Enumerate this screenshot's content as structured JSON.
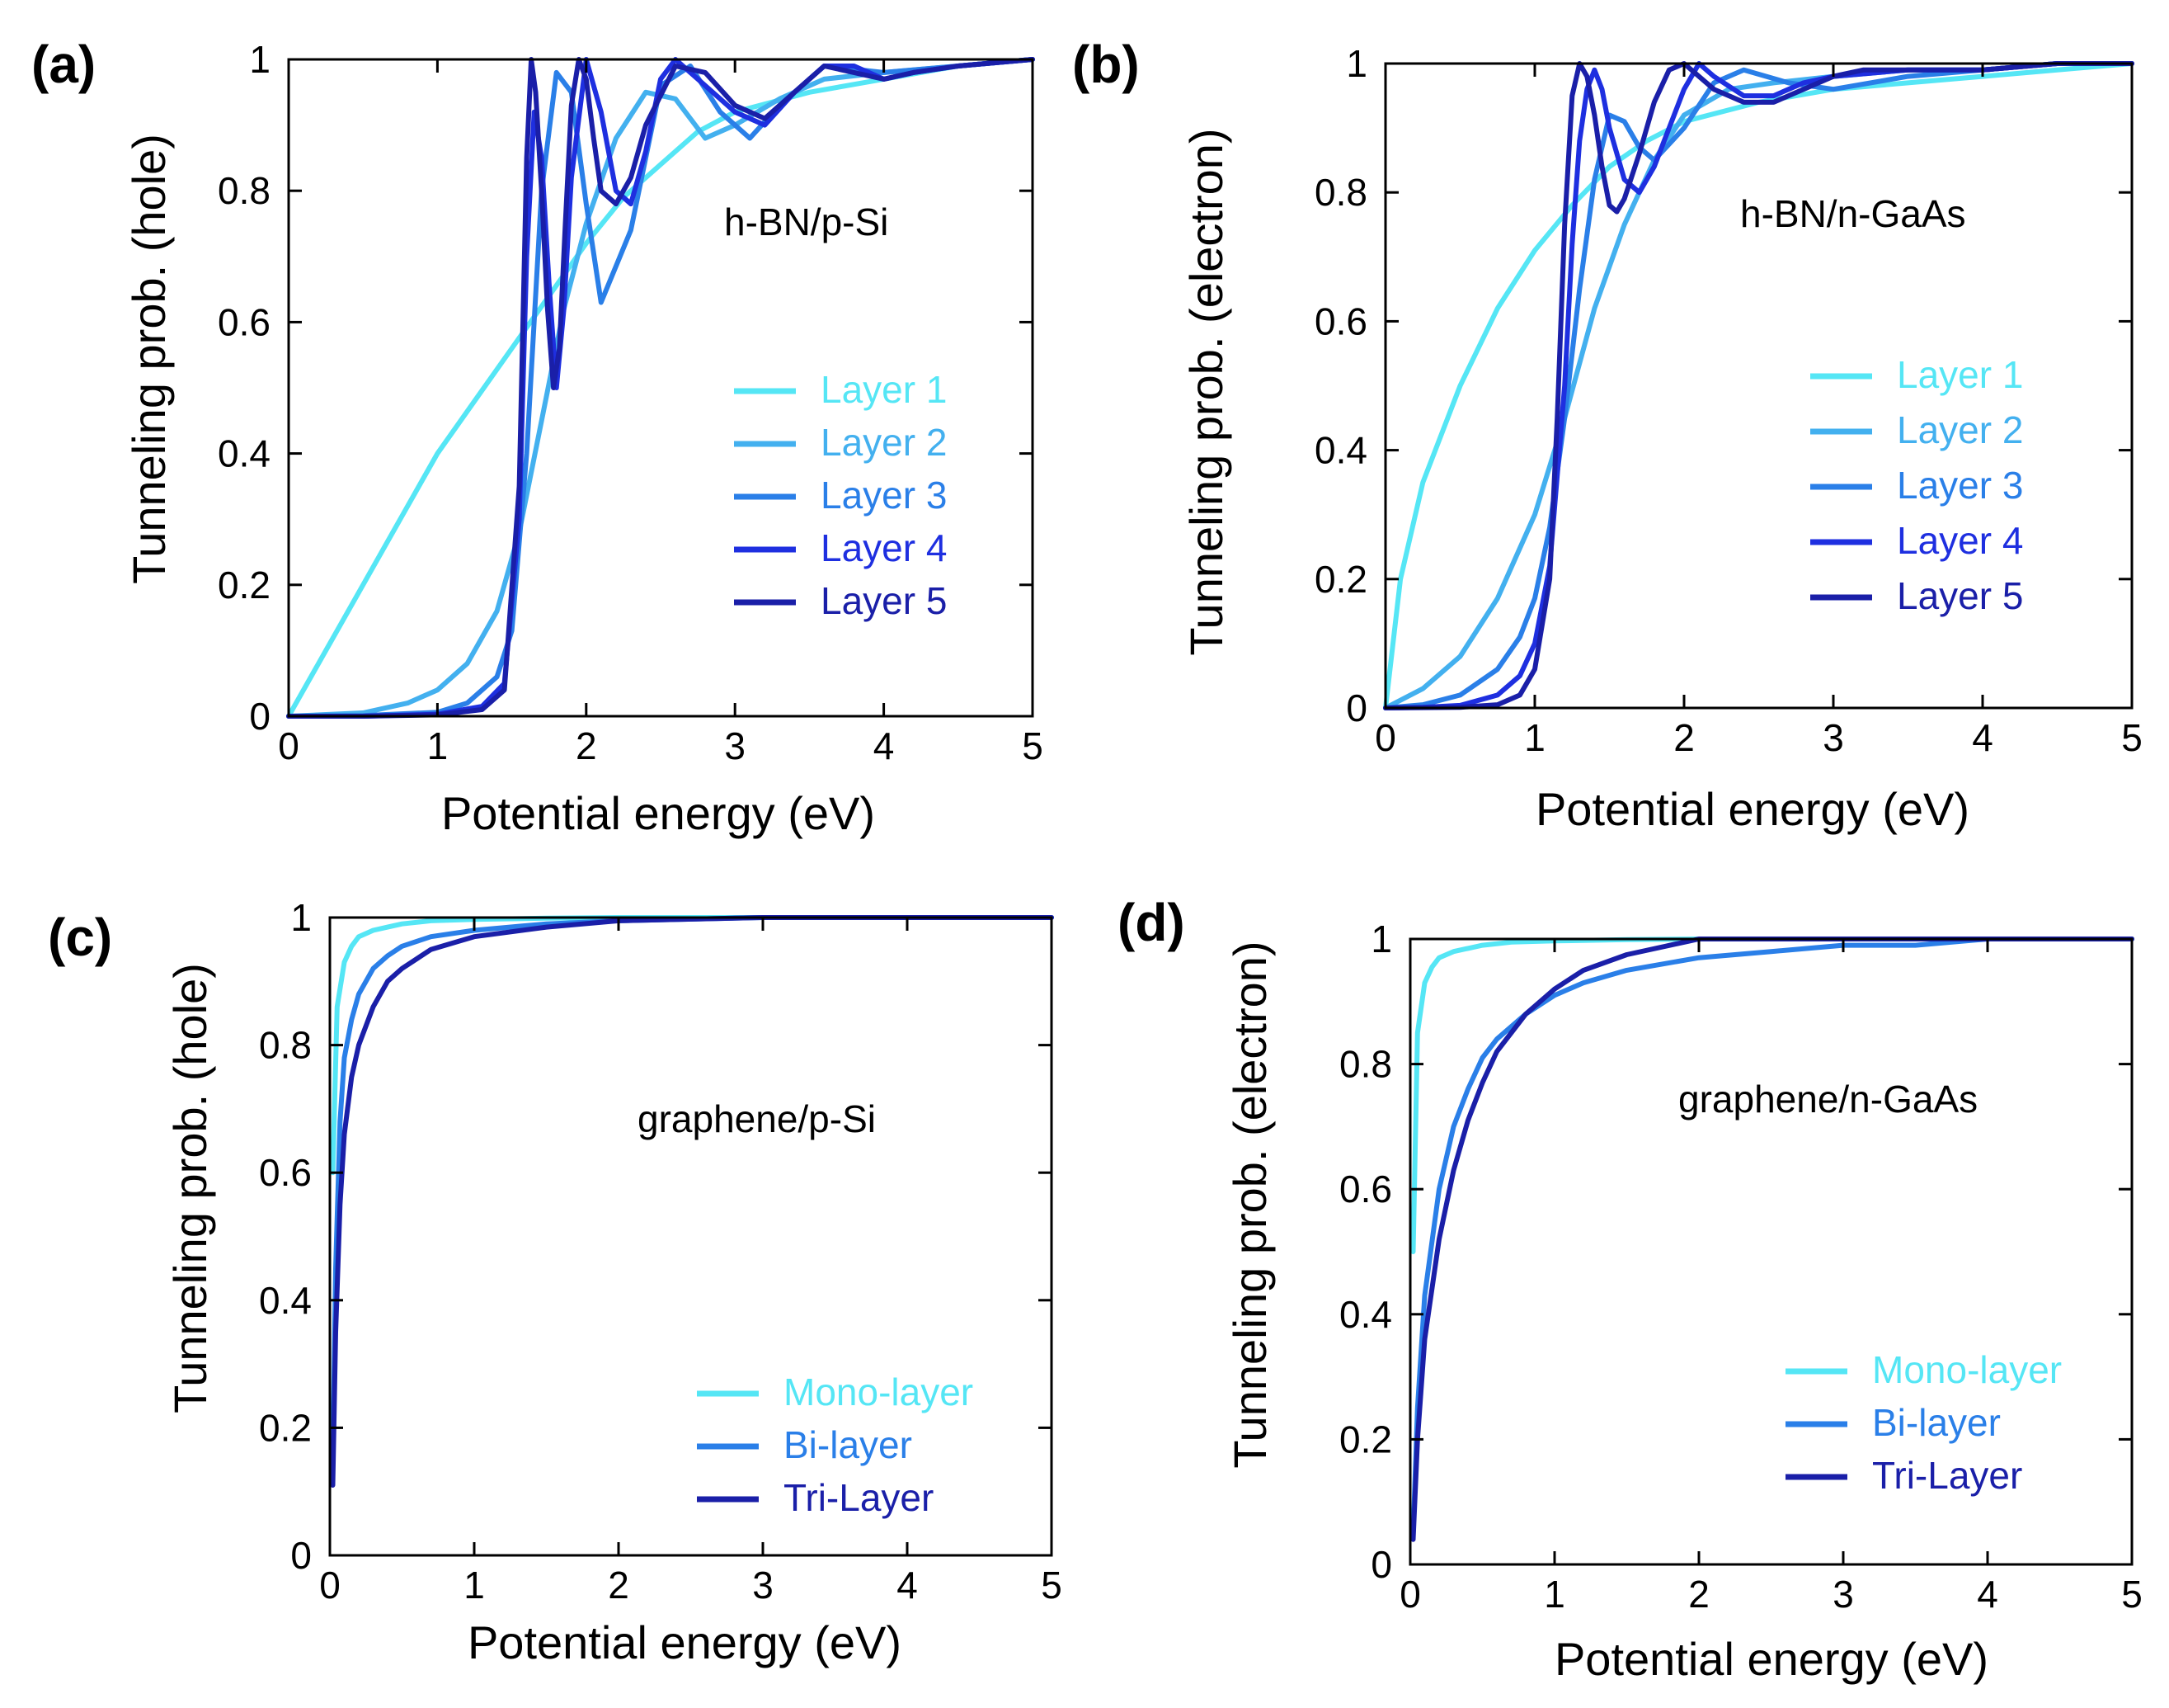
{
  "chart_data": [
    {
      "type": "line",
      "panel_label": "(a)",
      "annotation": "h-BN/p-Si",
      "xlabel": "Potential energy (eV)",
      "ylabel": "Tunneling prob. (hole)",
      "xlim": [
        0,
        5
      ],
      "ylim": [
        0,
        1
      ],
      "xticks": [
        "0",
        "1",
        "2",
        "3",
        "4",
        "5"
      ],
      "yticks": [
        "0",
        "0.2",
        "0.4",
        "0.6",
        "0.8",
        "1"
      ],
      "legend_position": "center-right",
      "series": [
        {
          "name": "Layer 1",
          "color": "#55e6f5",
          "x": [
            0,
            0.25,
            0.5,
            0.75,
            1,
            1.25,
            1.5,
            1.75,
            2,
            2.25,
            2.5,
            2.75,
            3,
            3.5,
            4,
            4.5,
            5
          ],
          "y": [
            0,
            0.1,
            0.2,
            0.3,
            0.4,
            0.48,
            0.56,
            0.64,
            0.72,
            0.79,
            0.84,
            0.89,
            0.92,
            0.95,
            0.97,
            0.99,
            1.0
          ]
        },
        {
          "name": "Layer 2",
          "color": "#43b0ef",
          "x": [
            0,
            0.5,
            0.8,
            1,
            1.2,
            1.4,
            1.55,
            1.7,
            1.85,
            2,
            2.2,
            2.4,
            2.6,
            2.8,
            3,
            3.3,
            3.6,
            4,
            4.5,
            5
          ],
          "y": [
            0,
            0.005,
            0.02,
            0.04,
            0.08,
            0.16,
            0.28,
            0.45,
            0.62,
            0.75,
            0.88,
            0.95,
            0.94,
            0.88,
            0.9,
            0.94,
            0.97,
            0.98,
            0.99,
            1.0
          ]
        },
        {
          "name": "Layer 3",
          "color": "#2a7fe8",
          "x": [
            0,
            0.5,
            1,
            1.2,
            1.4,
            1.5,
            1.6,
            1.7,
            1.8,
            1.9,
            2.0,
            2.1,
            2.3,
            2.5,
            2.7,
            2.9,
            3.1,
            3.3,
            3.6,
            4,
            4.5,
            5
          ],
          "y": [
            0,
            0.001,
            0.006,
            0.02,
            0.06,
            0.13,
            0.4,
            0.8,
            0.98,
            0.95,
            0.78,
            0.63,
            0.74,
            0.96,
            0.99,
            0.92,
            0.88,
            0.93,
            0.99,
            0.98,
            0.99,
            1.0
          ]
        },
        {
          "name": "Layer 4",
          "color": "#1e2fe0",
          "x": [
            0,
            0.5,
            1,
            1.3,
            1.45,
            1.55,
            1.6,
            1.65,
            1.7,
            1.75,
            1.8,
            1.85,
            1.9,
            2.0,
            2.1,
            2.2,
            2.3,
            2.4,
            2.5,
            2.6,
            2.8,
            3.0,
            3.2,
            3.4,
            3.6,
            3.8,
            4.0,
            4.2,
            4.5,
            5
          ],
          "y": [
            0,
            0,
            0.003,
            0.015,
            0.05,
            0.3,
            0.7,
            0.92,
            0.85,
            0.66,
            0.5,
            0.62,
            0.82,
            1.0,
            0.92,
            0.8,
            0.78,
            0.86,
            0.97,
            1.0,
            0.96,
            0.92,
            0.9,
            0.95,
            0.99,
            0.99,
            0.97,
            0.98,
            0.99,
            1.0
          ]
        },
        {
          "name": "Layer 5",
          "color": "#1a1fa8",
          "x": [
            0,
            0.5,
            1,
            1.3,
            1.45,
            1.55,
            1.6,
            1.63,
            1.66,
            1.7,
            1.74,
            1.78,
            1.82,
            1.86,
            1.9,
            1.95,
            2.0,
            2.05,
            2.1,
            2.2,
            2.3,
            2.4,
            2.6,
            2.8,
            3.0,
            3.2,
            3.4,
            3.6,
            3.8,
            4.0,
            4.2,
            4.5,
            5
          ],
          "y": [
            0,
            0,
            0.002,
            0.01,
            0.04,
            0.35,
            0.85,
            1.0,
            0.95,
            0.8,
            0.62,
            0.5,
            0.56,
            0.75,
            0.93,
            1.0,
            0.97,
            0.88,
            0.8,
            0.78,
            0.82,
            0.9,
            0.99,
            0.98,
            0.93,
            0.91,
            0.95,
            0.99,
            0.98,
            0.97,
            0.98,
            0.99,
            1.0
          ]
        }
      ]
    },
    {
      "type": "line",
      "panel_label": "(b)",
      "annotation": "h-BN/n-GaAs",
      "xlabel": "Potential energy (eV)",
      "ylabel": "Tunneling prob. (electron)",
      "xlim": [
        0,
        5
      ],
      "ylim": [
        0,
        1
      ],
      "xticks": [
        "0",
        "1",
        "2",
        "3",
        "4",
        "5"
      ],
      "yticks": [
        "0",
        "0.2",
        "0.4",
        "0.6",
        "0.8",
        "1"
      ],
      "legend_position": "center-right",
      "series": [
        {
          "name": "Layer 1",
          "color": "#55e6f5",
          "x": [
            0,
            0.1,
            0.25,
            0.5,
            0.75,
            1,
            1.25,
            1.5,
            1.75,
            2,
            2.5,
            3,
            3.5,
            4,
            4.5,
            5
          ],
          "y": [
            0,
            0.2,
            0.35,
            0.5,
            0.62,
            0.71,
            0.78,
            0.84,
            0.88,
            0.91,
            0.94,
            0.96,
            0.97,
            0.98,
            0.99,
            1.0
          ]
        },
        {
          "name": "Layer 2",
          "color": "#43b0ef",
          "x": [
            0,
            0.25,
            0.5,
            0.75,
            1,
            1.2,
            1.4,
            1.6,
            1.8,
            2,
            2.3,
            2.6,
            3,
            3.5,
            4,
            4.5,
            5
          ],
          "y": [
            0,
            0.03,
            0.08,
            0.17,
            0.3,
            0.45,
            0.62,
            0.75,
            0.85,
            0.92,
            0.96,
            0.97,
            0.98,
            0.99,
            0.99,
            1.0,
            1.0
          ]
        },
        {
          "name": "Layer 3",
          "color": "#2a7fe8",
          "x": [
            0,
            0.25,
            0.5,
            0.75,
            0.9,
            1,
            1.1,
            1.2,
            1.3,
            1.4,
            1.5,
            1.6,
            1.7,
            1.8,
            2,
            2.2,
            2.4,
            2.7,
            3,
            3.5,
            4,
            4.5,
            5
          ],
          "y": [
            0,
            0.005,
            0.02,
            0.06,
            0.11,
            0.17,
            0.28,
            0.45,
            0.65,
            0.82,
            0.92,
            0.91,
            0.87,
            0.85,
            0.9,
            0.97,
            0.99,
            0.97,
            0.96,
            0.98,
            0.99,
            1.0,
            1.0
          ]
        },
        {
          "name": "Layer 4",
          "color": "#1e2fe0",
          "x": [
            0,
            0.25,
            0.5,
            0.75,
            0.9,
            1,
            1.1,
            1.2,
            1.25,
            1.3,
            1.35,
            1.4,
            1.45,
            1.5,
            1.6,
            1.7,
            1.8,
            1.9,
            2,
            2.1,
            2.2,
            2.4,
            2.6,
            2.8,
            3,
            3.5,
            4,
            4.5,
            5
          ],
          "y": [
            0,
            0.001,
            0.004,
            0.02,
            0.05,
            0.1,
            0.22,
            0.5,
            0.72,
            0.88,
            0.96,
            0.99,
            0.96,
            0.9,
            0.82,
            0.8,
            0.84,
            0.9,
            0.96,
            1.0,
            0.98,
            0.95,
            0.95,
            0.97,
            0.98,
            0.99,
            0.99,
            1.0,
            1.0
          ]
        },
        {
          "name": "Layer 5",
          "color": "#1a1fa8",
          "x": [
            0,
            0.5,
            0.75,
            0.9,
            1,
            1.1,
            1.15,
            1.2,
            1.25,
            1.3,
            1.35,
            1.4,
            1.45,
            1.5,
            1.55,
            1.6,
            1.7,
            1.8,
            1.9,
            2.0,
            2.1,
            2.2,
            2.4,
            2.6,
            2.8,
            3,
            3.2,
            3.5,
            4,
            4.5,
            5
          ],
          "y": [
            0,
            0.001,
            0.005,
            0.02,
            0.06,
            0.2,
            0.45,
            0.75,
            0.95,
            1.0,
            0.98,
            0.92,
            0.84,
            0.78,
            0.77,
            0.79,
            0.86,
            0.94,
            0.99,
            1.0,
            0.98,
            0.96,
            0.94,
            0.94,
            0.96,
            0.98,
            0.99,
            0.99,
            0.99,
            1.0,
            1.0
          ]
        }
      ]
    },
    {
      "type": "line",
      "panel_label": "(c)",
      "annotation": "graphene/p-Si",
      "xlabel": "Potential energy (eV)",
      "ylabel": "Tunneling prob. (hole)",
      "xlim": [
        0,
        5
      ],
      "ylim": [
        0,
        1
      ],
      "xticks": [
        "0",
        "1",
        "2",
        "3",
        "4",
        "5"
      ],
      "yticks": [
        "0",
        "0.2",
        "0.4",
        "0.6",
        "0.8",
        "1"
      ],
      "legend_position": "bottom-right",
      "series": [
        {
          "name": "Mono-layer",
          "color": "#55e6f5",
          "x": [
            0.02,
            0.05,
            0.1,
            0.15,
            0.2,
            0.3,
            0.4,
            0.5,
            0.7,
            1,
            1.5,
            2,
            3,
            4,
            5
          ],
          "y": [
            0.6,
            0.86,
            0.93,
            0.955,
            0.97,
            0.98,
            0.985,
            0.99,
            0.995,
            0.997,
            0.999,
            1,
            1,
            1,
            1
          ]
        },
        {
          "name": "Bi-layer",
          "color": "#2a7fe8",
          "x": [
            0.02,
            0.04,
            0.07,
            0.1,
            0.15,
            0.2,
            0.3,
            0.4,
            0.5,
            0.7,
            1,
            1.5,
            2,
            3,
            4,
            5
          ],
          "y": [
            0.15,
            0.45,
            0.68,
            0.78,
            0.84,
            0.88,
            0.92,
            0.94,
            0.955,
            0.97,
            0.98,
            0.99,
            0.995,
            1,
            1,
            1
          ]
        },
        {
          "name": "Tri-Layer",
          "color": "#1a1fa8",
          "x": [
            0.02,
            0.04,
            0.07,
            0.1,
            0.15,
            0.2,
            0.3,
            0.4,
            0.5,
            0.7,
            1,
            1.5,
            2,
            3,
            4,
            5
          ],
          "y": [
            0.11,
            0.35,
            0.55,
            0.66,
            0.75,
            0.8,
            0.86,
            0.9,
            0.92,
            0.95,
            0.97,
            0.985,
            0.995,
            1,
            1,
            1
          ]
        }
      ]
    },
    {
      "type": "line",
      "panel_label": "(d)",
      "annotation": "graphene/n-GaAs",
      "xlabel": "Potential energy (eV)",
      "ylabel": "Tunneling prob. (electron)",
      "xlim": [
        0,
        5
      ],
      "ylim": [
        0,
        1
      ],
      "xticks": [
        "0",
        "1",
        "2",
        "3",
        "4",
        "5"
      ],
      "yticks": [
        "0",
        "0.2",
        "0.4",
        "0.6",
        "0.8",
        "1"
      ],
      "legend_position": "bottom-right",
      "series": [
        {
          "name": "Mono-layer",
          "color": "#55e6f5",
          "x": [
            0.02,
            0.05,
            0.1,
            0.15,
            0.2,
            0.3,
            0.4,
            0.5,
            0.7,
            1,
            1.5,
            2,
            3,
            4,
            5
          ],
          "y": [
            0.5,
            0.85,
            0.93,
            0.955,
            0.97,
            0.98,
            0.985,
            0.99,
            0.995,
            0.997,
            0.999,
            1,
            1,
            1,
            1
          ]
        },
        {
          "name": "Bi-layer",
          "color": "#2a7fe8",
          "x": [
            0.02,
            0.05,
            0.1,
            0.2,
            0.3,
            0.4,
            0.5,
            0.6,
            0.8,
            1,
            1.2,
            1.5,
            2,
            2.5,
            3,
            3.5,
            4,
            5
          ],
          "y": [
            0.05,
            0.25,
            0.43,
            0.6,
            0.7,
            0.76,
            0.81,
            0.84,
            0.88,
            0.91,
            0.93,
            0.95,
            0.97,
            0.98,
            0.99,
            0.99,
            1,
            1
          ]
        },
        {
          "name": "Tri-Layer",
          "color": "#1a1fa8",
          "x": [
            0.02,
            0.05,
            0.1,
            0.2,
            0.3,
            0.4,
            0.5,
            0.6,
            0.8,
            1,
            1.2,
            1.5,
            1.8,
            2,
            2.5,
            3,
            3.5,
            4,
            5
          ],
          "y": [
            0.04,
            0.2,
            0.36,
            0.52,
            0.63,
            0.71,
            0.77,
            0.82,
            0.88,
            0.92,
            0.95,
            0.975,
            0.99,
            1,
            1,
            1,
            1,
            1,
            1
          ]
        }
      ]
    }
  ]
}
